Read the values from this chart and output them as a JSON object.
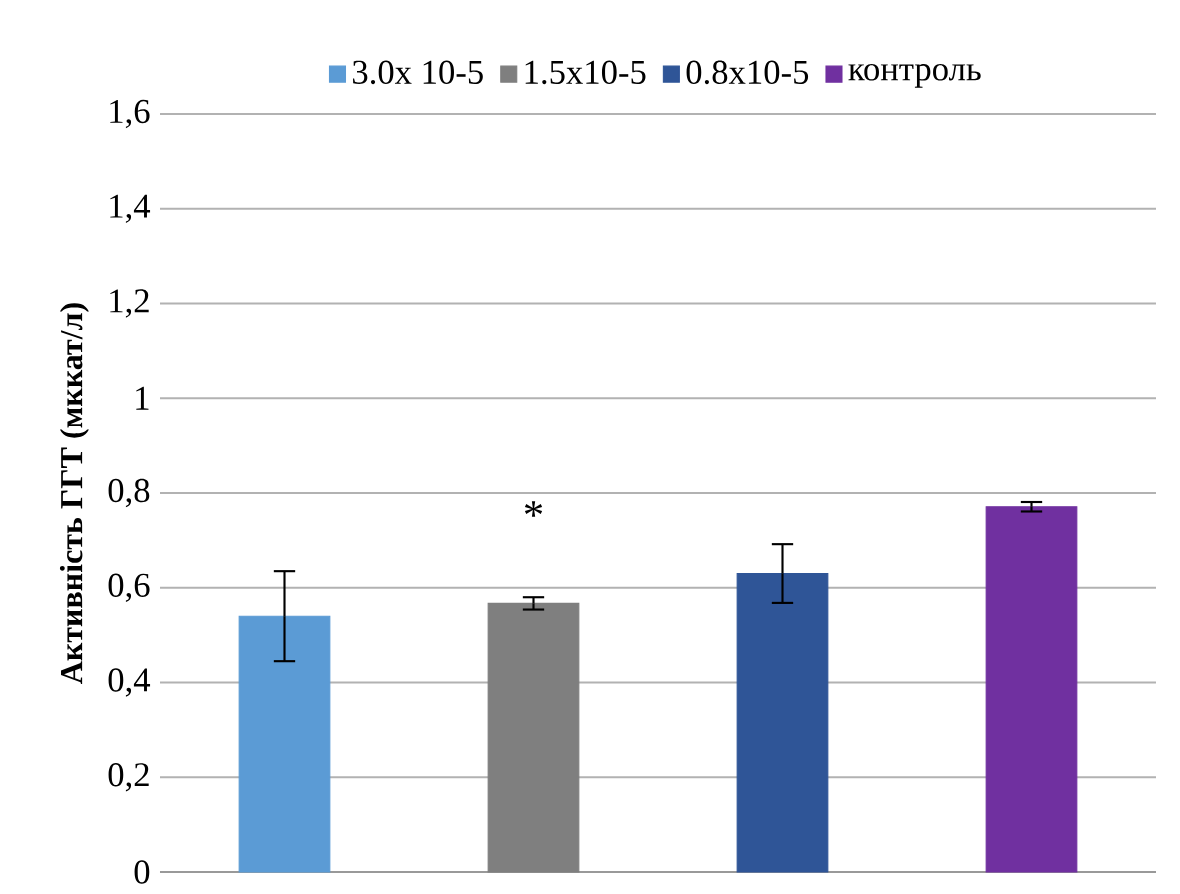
{
  "chart_data": {
    "type": "bar",
    "ylabel": "Активність  ГГТ (мккат/л)",
    "categories": [
      null,
      null,
      null,
      null
    ],
    "series": [
      {
        "name": "3.0x 10-5",
        "color": "#5b9bd5",
        "values": [
          0.54,
          null,
          null,
          null
        ],
        "errors": [
          0.095,
          null,
          null,
          null
        ]
      },
      {
        "name": "1.5x10-5",
        "color": "#7f7f7f",
        "values": [
          null,
          0.567,
          null,
          null
        ],
        "errors": [
          null,
          0.013,
          null,
          null
        ]
      },
      {
        "name": "0.8x10-5",
        "color": "#2f5597",
        "values": [
          null,
          null,
          0.63,
          null
        ],
        "errors": [
          null,
          null,
          0.062,
          null
        ]
      },
      {
        "name": "контроль",
        "color": "#7030a0",
        "values": [
          null,
          null,
          null,
          0.771
        ],
        "errors": [
          null,
          null,
          null,
          0.01
        ]
      }
    ],
    "ylim": [
      0,
      1.6
    ],
    "yticks": [
      {
        "value": 0,
        "label": "0"
      },
      {
        "value": 0.2,
        "label": "0,2"
      },
      {
        "value": 0.4,
        "label": "0,4"
      },
      {
        "value": 0.6,
        "label": "0,6"
      },
      {
        "value": 0.8,
        "label": "0,8"
      },
      {
        "value": 1,
        "label": "1"
      },
      {
        "value": 1.2,
        "label": "1,2"
      },
      {
        "value": 1.4,
        "label": "1,4"
      },
      {
        "value": 1.6,
        "label": "1,6"
      }
    ],
    "grid": "y",
    "legend": "top",
    "annotations": [
      "*"
    ]
  }
}
